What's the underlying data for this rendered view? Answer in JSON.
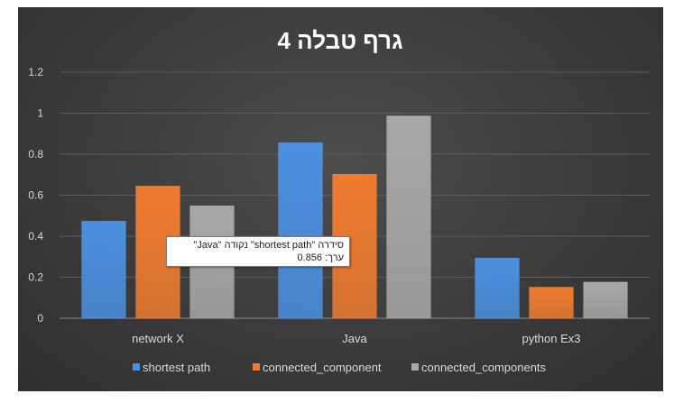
{
  "chart_data": {
    "type": "bar",
    "title": "גרף טבלה 4",
    "categories": [
      "network X",
      "Java",
      "python Ex3"
    ],
    "series": [
      {
        "name": "shortest path",
        "values": [
          0.474,
          0.856,
          0.294
        ],
        "color": "#4a90e0"
      },
      {
        "name": "connected_component",
        "values": [
          0.645,
          0.703,
          0.152
        ],
        "color": "#f07b2f"
      },
      {
        "name": "connected_components",
        "values": [
          0.549,
          0.987,
          0.177
        ],
        "color": "#a8a8a8"
      }
    ],
    "ylim": [
      0,
      1.2
    ],
    "yticks": [
      "0",
      "0.2",
      "0.4",
      "0.6",
      "0.8",
      "1",
      "1.2"
    ],
    "grid": true,
    "legend": "bottom"
  },
  "tooltip": {
    "line1": "סידרה \"shortest path\" נקודה \"Java\"",
    "line2": "ערך: 0.856"
  }
}
